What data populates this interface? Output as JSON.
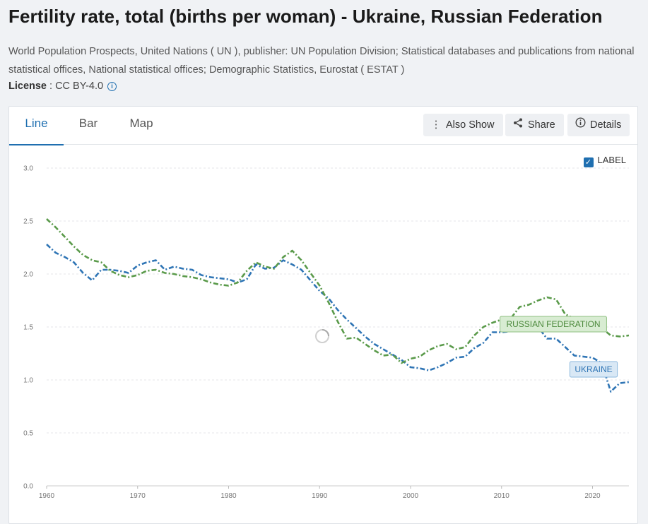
{
  "page": {
    "title": "Fertility rate, total (births per woman) - Ukraine, Russian Federation",
    "source": "World Population Prospects, United Nations ( UN ), publisher: UN Population Division; Statistical databases and publications from national statistical offices, National statistical offices; Demographic Statistics, Eurostat ( ESTAT )",
    "license_label": "License",
    "license_value": " : CC BY-4.0"
  },
  "tabs": [
    {
      "label": "Line",
      "active": true
    },
    {
      "label": "Bar",
      "active": false
    },
    {
      "label": "Map",
      "active": false
    }
  ],
  "toolbar": {
    "also_show": "Also Show",
    "share": "Share",
    "details": "Details",
    "label_toggle": "LABEL"
  },
  "colors": {
    "ukraine": "#2f75b5",
    "russia": "#5a9a4a",
    "accent": "#1f6fb0"
  },
  "chart_data": {
    "type": "line",
    "title": "Fertility rate, total (births per woman)",
    "xlabel": "",
    "ylabel": "",
    "xlim": [
      1960,
      2024
    ],
    "ylim": [
      0,
      3.0
    ],
    "yticks": [
      "0.0",
      "0.5",
      "1.0",
      "1.5",
      "2.0",
      "2.5",
      "3.0"
    ],
    "xticks": [
      "1960",
      "1970",
      "1980",
      "1990",
      "2000",
      "2010",
      "2020"
    ],
    "grid": true,
    "series": [
      {
        "name": "UKRAINE",
        "color": "#2f75b5",
        "x": [
          1960,
          1961,
          1962,
          1963,
          1964,
          1965,
          1966,
          1967,
          1968,
          1969,
          1970,
          1971,
          1972,
          1973,
          1974,
          1975,
          1976,
          1977,
          1978,
          1979,
          1980,
          1981,
          1982,
          1983,
          1984,
          1985,
          1986,
          1987,
          1988,
          1989,
          1990,
          1991,
          1992,
          1993,
          1994,
          1995,
          1996,
          1997,
          1998,
          1999,
          2000,
          2001,
          2002,
          2003,
          2004,
          2005,
          2006,
          2007,
          2008,
          2009,
          2010,
          2011,
          2012,
          2013,
          2014,
          2015,
          2016,
          2017,
          2018,
          2019,
          2020,
          2021,
          2022,
          2023,
          2024
        ],
        "values": [
          2.28,
          2.2,
          2.16,
          2.11,
          2.01,
          1.94,
          2.04,
          2.04,
          2.03,
          2.01,
          2.08,
          2.11,
          2.13,
          2.04,
          2.07,
          2.05,
          2.04,
          1.99,
          1.97,
          1.96,
          1.95,
          1.92,
          1.95,
          2.09,
          2.05,
          2.06,
          2.13,
          2.09,
          2.04,
          1.94,
          1.84,
          1.77,
          1.66,
          1.57,
          1.49,
          1.41,
          1.34,
          1.29,
          1.24,
          1.19,
          1.12,
          1.11,
          1.09,
          1.12,
          1.16,
          1.21,
          1.22,
          1.3,
          1.35,
          1.45,
          1.45,
          1.46,
          1.53,
          1.51,
          1.5,
          1.39,
          1.39,
          1.31,
          1.23,
          1.22,
          1.21,
          1.16,
          0.89,
          0.97,
          0.98
        ]
      },
      {
        "name": "RUSSIAN FEDERATION",
        "color": "#5a9a4a",
        "x": [
          1960,
          1961,
          1962,
          1963,
          1964,
          1965,
          1966,
          1967,
          1968,
          1969,
          1970,
          1971,
          1972,
          1973,
          1974,
          1975,
          1976,
          1977,
          1978,
          1979,
          1980,
          1981,
          1982,
          1983,
          1984,
          1985,
          1986,
          1987,
          1988,
          1989,
          1990,
          1991,
          1992,
          1993,
          1994,
          1995,
          1996,
          1997,
          1998,
          1999,
          2000,
          2001,
          2002,
          2003,
          2004,
          2005,
          2006,
          2007,
          2008,
          2009,
          2010,
          2011,
          2012,
          2013,
          2014,
          2015,
          2016,
          2017,
          2018,
          2019,
          2020,
          2021,
          2022,
          2023,
          2024
        ],
        "values": [
          2.52,
          2.44,
          2.35,
          2.26,
          2.18,
          2.13,
          2.11,
          2.03,
          1.99,
          1.97,
          1.99,
          2.03,
          2.04,
          2.01,
          2.0,
          1.98,
          1.97,
          1.95,
          1.92,
          1.9,
          1.89,
          1.92,
          2.03,
          2.11,
          2.07,
          2.05,
          2.16,
          2.22,
          2.13,
          2.01,
          1.89,
          1.73,
          1.55,
          1.39,
          1.4,
          1.34,
          1.28,
          1.23,
          1.24,
          1.16,
          1.2,
          1.22,
          1.28,
          1.32,
          1.34,
          1.29,
          1.31,
          1.42,
          1.5,
          1.54,
          1.57,
          1.58,
          1.69,
          1.71,
          1.75,
          1.78,
          1.76,
          1.62,
          1.58,
          1.5,
          1.51,
          1.49,
          1.42,
          1.41,
          1.42
        ]
      }
    ]
  }
}
